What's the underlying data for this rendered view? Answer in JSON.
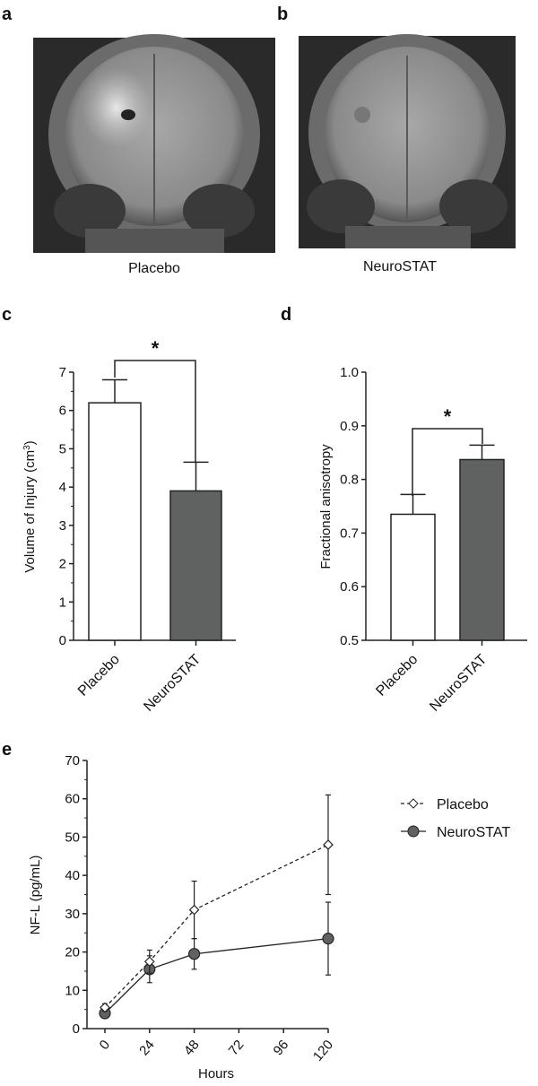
{
  "panels": {
    "a": "a",
    "b": "b",
    "c": "c",
    "d": "d",
    "e": "e"
  },
  "images": {
    "a_caption": "Placebo",
    "b_caption": "NeuroSTAT"
  },
  "colors": {
    "placebo": "#ffffff",
    "neurostat": "#5f6261",
    "axis": "#222222"
  },
  "chart_data": [
    {
      "id": "c",
      "type": "bar",
      "categories": [
        "Placebo",
        "NeuroSTAT"
      ],
      "values": [
        6.2,
        3.9
      ],
      "errors": [
        0.6,
        0.75
      ],
      "ylabel": "Volume of Injury (cm³)",
      "ylabel_main": "Volume of Injury (cm",
      "ylabel_sup": "3",
      "ylabel_end": ")",
      "ylim": [
        0,
        7
      ],
      "yticks": [
        "0",
        "1",
        "2",
        "3",
        "4",
        "5",
        "6",
        "7"
      ],
      "significance": "*"
    },
    {
      "id": "d",
      "type": "bar",
      "categories": [
        "Placebo",
        "NeuroSTAT"
      ],
      "values": [
        0.735,
        0.837
      ],
      "errors": [
        0.037,
        0.027
      ],
      "ylabel": "Fractional anisotropy",
      "ylim": [
        0.5,
        1.0
      ],
      "yticks": [
        "0.5",
        "0.6",
        "0.7",
        "0.8",
        "0.9",
        "1.0"
      ],
      "significance": "*"
    },
    {
      "id": "e",
      "type": "line",
      "xlabel": "Hours",
      "ylabel": "NF-L (pg/mL)",
      "xlim": [
        0,
        120
      ],
      "ylim": [
        0,
        70
      ],
      "xticks": [
        "0",
        "24",
        "48",
        "72",
        "96",
        "120"
      ],
      "yticks": [
        "0",
        "10",
        "20",
        "30",
        "40",
        "50",
        "60",
        "70"
      ],
      "legend": "right",
      "series": [
        {
          "name": "Placebo",
          "marker": "diamond",
          "line": "dashed",
          "x": [
            0,
            24,
            48,
            120
          ],
          "y": [
            5.5,
            17.5,
            31,
            48
          ],
          "err": [
            1,
            3,
            7.5,
            13
          ]
        },
        {
          "name": "NeuroSTAT",
          "marker": "circle",
          "line": "solid",
          "x": [
            0,
            24,
            48,
            120
          ],
          "y": [
            4,
            15.5,
            19.5,
            23.5
          ],
          "err": [
            0.8,
            3.5,
            4,
            9.5
          ]
        }
      ]
    }
  ]
}
